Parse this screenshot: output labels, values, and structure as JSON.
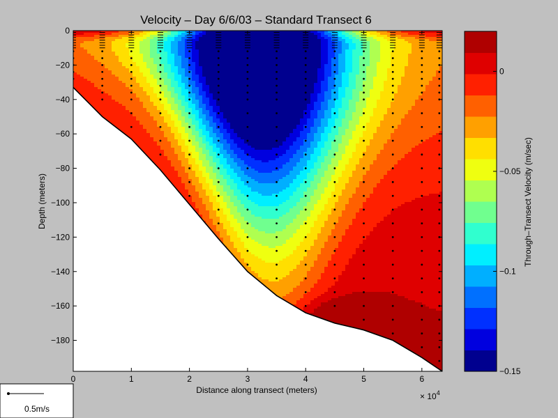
{
  "chart_data": {
    "type": "heatmap",
    "title": "Velocity – Day 6/6/03 – Standard Transect 6",
    "xlabel": "Distance along transect (meters)",
    "ylabel": "Depth (meters)",
    "x_multiplier": "× 10",
    "x_multiplier_exp": "4",
    "xlim": [
      0,
      63500
    ],
    "ylim": [
      -198,
      0
    ],
    "x_ticks": [
      {
        "value": 0,
        "label": "0"
      },
      {
        "value": 10000,
        "label": "1"
      },
      {
        "value": 20000,
        "label": "2"
      },
      {
        "value": 30000,
        "label": "3"
      },
      {
        "value": 40000,
        "label": "4"
      },
      {
        "value": 50000,
        "label": "5"
      },
      {
        "value": 60000,
        "label": "6"
      }
    ],
    "y_ticks": [
      {
        "value": 0,
        "label": "0"
      },
      {
        "value": -20,
        "label": "−20"
      },
      {
        "value": -40,
        "label": "−40"
      },
      {
        "value": -60,
        "label": "−60"
      },
      {
        "value": -80,
        "label": "−80"
      },
      {
        "value": -100,
        "label": "−100"
      },
      {
        "value": -120,
        "label": "−120"
      },
      {
        "value": -140,
        "label": "−140"
      },
      {
        "value": -160,
        "label": "−160"
      },
      {
        "value": -180,
        "label": "−180"
      }
    ],
    "bottom_profile": [
      [
        0,
        -33
      ],
      [
        5000,
        -50
      ],
      [
        10000,
        -63
      ],
      [
        15000,
        -81
      ],
      [
        20000,
        -101
      ],
      [
        25000,
        -121
      ],
      [
        30000,
        -140
      ],
      [
        35000,
        -154
      ],
      [
        40000,
        -164
      ],
      [
        45000,
        -170
      ],
      [
        50000,
        -174
      ],
      [
        55000,
        -180
      ],
      [
        60000,
        -190
      ],
      [
        63500,
        -198
      ]
    ],
    "core": {
      "x": 32000,
      "depth": 10,
      "min_velocity": -0.15
    },
    "deep_max": {
      "x": 45000,
      "depth": 165
    },
    "colorbar": {
      "label": "Through–Transect Velocity (m/sec)",
      "range": [
        -0.15,
        0.02
      ],
      "ticks": [
        {
          "value": 0,
          "label": "0"
        },
        {
          "value": -0.05,
          "label": "−0.05"
        },
        {
          "value": -0.1,
          "label": "−0.1"
        },
        {
          "value": -0.15,
          "label": "−0.15"
        }
      ],
      "colors": [
        "#00008f",
        "#0000df",
        "#0030ff",
        "#0070ff",
        "#00afff",
        "#00efff",
        "#30ffcf",
        "#70ff8f",
        "#afff50",
        "#efff10",
        "#ffdf00",
        "#ffa000",
        "#ff6000",
        "#ff2000",
        "#df0000",
        "#af0000"
      ]
    },
    "sample_station_x": [
      0,
      5000,
      10000,
      15000,
      20000,
      25000,
      30000,
      35000,
      40000,
      45000,
      50000,
      55000,
      60000,
      63000
    ],
    "scale_arrow": {
      "label": "0.5m/s"
    }
  }
}
